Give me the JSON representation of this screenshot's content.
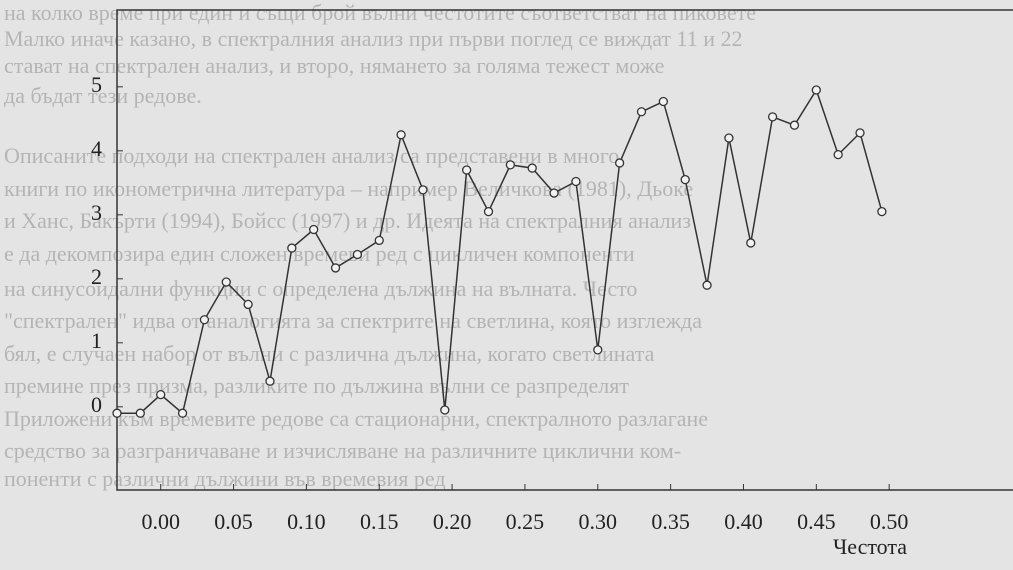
{
  "page_text": {
    "lines": [
      "на колко време при един и същи брой вълни честотите съответстват на пиковете",
      "Малко иначе казано, в спектралния анализ при първи поглед се виждат 11 и 22",
      "стават на спектрален анализ, и второ, нямането за голяма тежест може",
      "да бъдат тези редове.",
      "Описаните подходи на спектрален анализ са представени в много",
      "книги по иконометрична литература – например Величкова (1981), Дьоке",
      "и Ханс, Бакърти (1994), Бойсс (1997) и др. Идеята на спектралния анализ",
      "е да декомпозира един сложен времеви ред с цикличен компоненти",
      "на синусоидални функции с определена дължина на вълната. Често",
      "\"спектрален\" идва от аналогията за спектрите на светлина, която изглежда",
      "бял, е случаен набор от вълни с различна дължина, когато светлината",
      "премине през призма, разликите по дължина вълни се разпределят",
      "Приложени към времевите редове са стационарни, спектралното разлагане",
      "средство за разграничаване и изчисляване на различните циклични ком-",
      "поненти с различни дължини във времевия ред"
    ]
  },
  "chart_data": {
    "type": "line",
    "x_label": "Честота",
    "color": "#333333",
    "x": [
      -0.03,
      -0.014,
      0.0,
      0.015,
      0.03,
      0.045,
      0.06,
      0.075,
      0.09,
      0.105,
      0.12,
      0.135,
      0.15,
      0.165,
      0.18,
      0.195,
      0.21,
      0.225,
      0.24,
      0.255,
      0.27,
      0.285,
      0.3,
      0.315,
      0.33,
      0.345,
      0.36,
      0.375,
      0.39,
      0.405,
      0.42,
      0.435,
      0.45,
      0.465,
      0.48,
      0.495
    ],
    "values": [
      -0.1,
      -0.1,
      0.19,
      -0.1,
      1.36,
      1.95,
      1.6,
      0.4,
      2.48,
      2.77,
      2.17,
      2.38,
      2.6,
      4.25,
      3.39,
      -0.05,
      3.7,
      3.05,
      3.78,
      3.73,
      3.34,
      3.52,
      0.89,
      3.81,
      4.61,
      4.77,
      3.55,
      1.9,
      4.2,
      2.56,
      4.53,
      4.4,
      4.95,
      3.94,
      4.28,
      3.05
    ],
    "xlim": [
      -0.03,
      0.585
    ],
    "ylim": [
      -1.3,
      6.2
    ],
    "xticks": [
      {
        "value": 0,
        "label": "0.00"
      },
      {
        "value": 0.05,
        "label": "0.05"
      },
      {
        "value": 0.1,
        "label": "0.10"
      },
      {
        "value": 0.15,
        "label": "0.15"
      },
      {
        "value": 0.2,
        "label": "0.20"
      },
      {
        "value": 0.25,
        "label": "0.25"
      },
      {
        "value": 0.3,
        "label": "0.30"
      },
      {
        "value": 0.35,
        "label": "0.35"
      },
      {
        "value": 0.4,
        "label": "0.40"
      },
      {
        "value": 0.45,
        "label": "0.45"
      },
      {
        "value": 0.5,
        "label": "0.50"
      }
    ],
    "yticks": [
      0,
      1,
      2,
      3,
      4,
      5
    ]
  }
}
